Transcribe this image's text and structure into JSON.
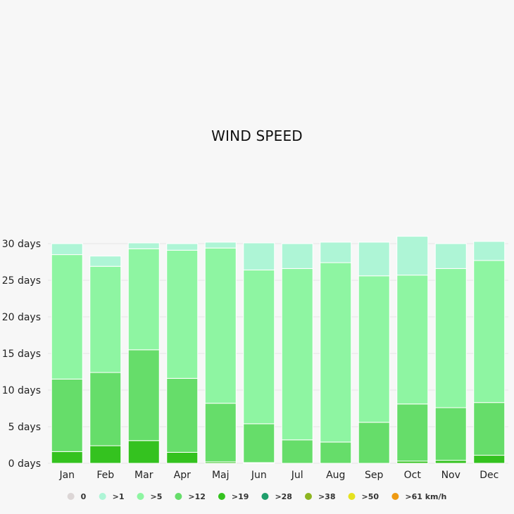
{
  "chart_data": {
    "type": "bar",
    "stacked": true,
    "title": "WIND SPEED",
    "unit_suffix": " days",
    "ylim": [
      0,
      30
    ],
    "yticks": [
      0,
      5,
      10,
      15,
      20,
      25,
      30
    ],
    "grid": true,
    "legend_position": "bottom",
    "categories": [
      "Jan",
      "Feb",
      "Mar",
      "Apr",
      "Maj",
      "Jun",
      "Jul",
      "Aug",
      "Sep",
      "Oct",
      "Nov",
      "Dec"
    ],
    "series": [
      {
        "name": "0",
        "color": "#dcd6d6",
        "values": [
          0,
          0,
          0,
          0,
          0,
          0,
          0,
          0,
          0,
          0,
          0,
          0
        ]
      },
      {
        "name": ">1",
        "color": "#aef5d6",
        "values": [
          1.5,
          1.4,
          0.8,
          0.9,
          0.8,
          3.7,
          3.4,
          2.8,
          4.6,
          5.3,
          3.4,
          2.6
        ]
      },
      {
        "name": ">5",
        "color": "#8ef5a2",
        "values": [
          17.0,
          14.5,
          13.8,
          17.5,
          21.2,
          21.0,
          23.4,
          24.5,
          20.0,
          17.6,
          19.0,
          19.4
        ]
      },
      {
        "name": ">12",
        "color": "#66dd6a",
        "values": [
          9.9,
          10.0,
          12.4,
          10.1,
          8.0,
          5.3,
          3.2,
          2.9,
          5.6,
          7.8,
          7.2,
          7.2
        ]
      },
      {
        "name": ">19",
        "color": "#34c21f",
        "values": [
          1.6,
          2.4,
          3.1,
          1.5,
          0.2,
          0.1,
          0,
          0,
          0,
          0.3,
          0.4,
          1.1
        ]
      },
      {
        "name": ">28",
        "color": "#1f9e6b",
        "values": [
          0,
          0,
          0,
          0,
          0,
          0,
          0,
          0,
          0,
          0,
          0,
          0
        ]
      },
      {
        "name": ">38",
        "color": "#8db521",
        "values": [
          0,
          0,
          0,
          0,
          0,
          0,
          0,
          0,
          0,
          0,
          0,
          0
        ]
      },
      {
        "name": ">50",
        "color": "#e5e21f",
        "values": [
          0,
          0,
          0,
          0,
          0,
          0,
          0,
          0,
          0,
          0,
          0,
          0
        ]
      },
      {
        "name": ">61 km/h",
        "color": "#ee9a12",
        "values": [
          0,
          0,
          0,
          0,
          0,
          0,
          0,
          0,
          0,
          0,
          0,
          0
        ]
      }
    ]
  }
}
